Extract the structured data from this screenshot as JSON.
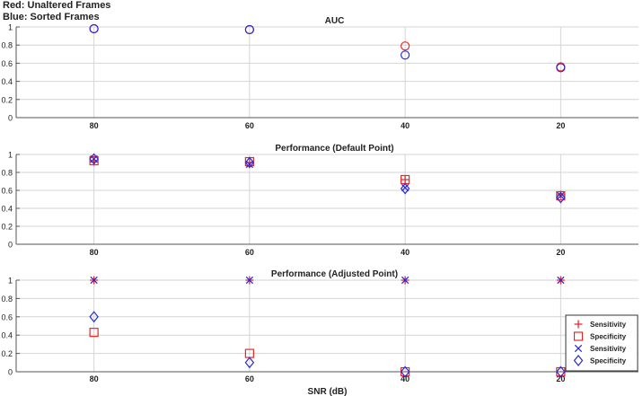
{
  "notes": {
    "red": "Red: Unaltered Frames",
    "blue": "Blue: Sorted Frames"
  },
  "colors": {
    "red": "#e8282a",
    "blue": "#2a2ad2",
    "purple": "#7a1f9e"
  },
  "chart_data": [
    {
      "type": "scatter",
      "title": "AUC",
      "xlabel": "",
      "x_reversed": true,
      "xlim": [
        90,
        10
      ],
      "ylim": [
        0,
        1
      ],
      "x_ticks": [
        80,
        60,
        40,
        20
      ],
      "y_ticks": [
        0,
        0.2,
        0.4,
        0.6,
        0.8,
        1
      ],
      "grid": true,
      "series": [
        {
          "group": "Unaltered",
          "color": "red",
          "marker": "circle",
          "x": [
            80,
            60,
            40,
            20
          ],
          "y": [
            0.98,
            0.97,
            0.79,
            0.56
          ]
        },
        {
          "group": "Sorted",
          "color": "blue",
          "marker": "circle",
          "x": [
            80,
            60,
            40,
            20
          ],
          "y": [
            0.98,
            0.97,
            0.69,
            0.55
          ]
        }
      ]
    },
    {
      "type": "scatter",
      "title": "Performance (Default Point)",
      "xlabel": "",
      "x_reversed": true,
      "xlim": [
        90,
        10
      ],
      "ylim": [
        0,
        1
      ],
      "x_ticks": [
        80,
        60,
        40,
        20
      ],
      "y_ticks": [
        0,
        0.2,
        0.4,
        0.6,
        0.8,
        1
      ],
      "grid": true,
      "series": [
        {
          "group": "Unaltered",
          "color": "red",
          "marker": "plus",
          "x": [
            80,
            60,
            40,
            20
          ],
          "y": [
            0.92,
            0.91,
            0.72,
            0.55
          ]
        },
        {
          "group": "Unaltered",
          "color": "red",
          "marker": "square",
          "x": [
            80,
            60,
            40,
            20
          ],
          "y": [
            0.93,
            0.92,
            0.72,
            0.54
          ]
        },
        {
          "group": "Sorted",
          "color": "blue",
          "marker": "x",
          "x": [
            80,
            60,
            40,
            20
          ],
          "y": [
            0.95,
            0.89,
            0.63,
            0.54
          ]
        },
        {
          "group": "Sorted",
          "color": "blue",
          "marker": "diamond",
          "x": [
            80,
            60,
            40,
            20
          ],
          "y": [
            0.95,
            0.91,
            0.62,
            0.52
          ]
        }
      ]
    },
    {
      "type": "scatter",
      "title": "Performance (Adjusted Point)",
      "xlabel": "SNR (dB)",
      "x_reversed": true,
      "xlim": [
        90,
        10
      ],
      "ylim": [
        0,
        1
      ],
      "x_ticks": [
        80,
        60,
        40,
        20
      ],
      "y_ticks": [
        0,
        0.2,
        0.4,
        0.6,
        0.8,
        1
      ],
      "grid": true,
      "legend_placement": "bottom-right",
      "legend": [
        {
          "label": "Sensitivity",
          "color": "red",
          "marker": "plus"
        },
        {
          "label": "Specificity",
          "color": "red",
          "marker": "square"
        },
        {
          "label": "Sensitivity",
          "color": "blue",
          "marker": "x"
        },
        {
          "label": "Specificity",
          "color": "blue",
          "marker": "diamond"
        }
      ],
      "series": [
        {
          "name": "Sensitivity",
          "group": "Unaltered",
          "color": "red",
          "marker": "plus",
          "x": [
            80,
            60,
            40,
            20
          ],
          "y": [
            1,
            1,
            1,
            1
          ]
        },
        {
          "name": "Specificity",
          "group": "Unaltered",
          "color": "red",
          "marker": "square",
          "x": [
            80,
            60,
            40,
            20
          ],
          "y": [
            0.43,
            0.2,
            0.0,
            0.0
          ]
        },
        {
          "name": "Sensitivity",
          "group": "Sorted",
          "color": "blue",
          "marker": "x",
          "x": [
            80,
            60,
            40,
            20
          ],
          "y": [
            1,
            1,
            1,
            1
          ]
        },
        {
          "name": "Specificity",
          "group": "Sorted",
          "color": "blue",
          "marker": "diamond",
          "x": [
            80,
            60,
            40,
            20
          ],
          "y": [
            0.6,
            0.1,
            0.0,
            0.0
          ]
        }
      ]
    }
  ]
}
